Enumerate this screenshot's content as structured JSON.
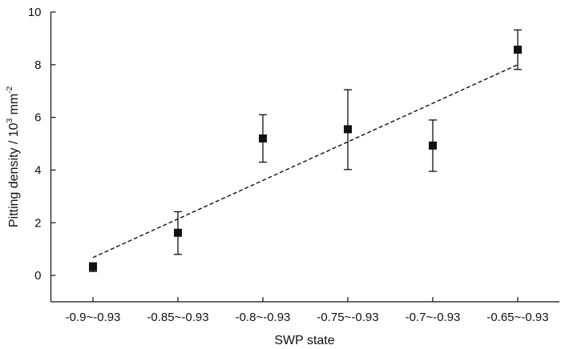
{
  "chart_data": {
    "type": "scatter",
    "xlabel": "SWP state",
    "ylabel": {
      "prefix": "Pitting density / 10",
      "exp1": "3",
      "middle": " mm",
      "exp2": "-2"
    },
    "categories": [
      "-0.9~-0.93",
      "-0.85~-0.93",
      "-0.8~-0.93",
      "-0.75~-0.93",
      "-0.7~-0.93",
      "-0.65~-0.93"
    ],
    "series": [
      {
        "values": [
          0.33,
          1.62,
          5.2,
          5.55,
          4.93,
          8.57
        ],
        "error_low": [
          0.15,
          0.8,
          4.3,
          4.02,
          3.95,
          7.82
        ],
        "error_high": [
          0.48,
          2.42,
          6.1,
          7.05,
          5.9,
          9.32
        ]
      }
    ],
    "fit_line": {
      "style": "dashed",
      "start": 0.68,
      "end": 8.0
    },
    "ylim": [
      -1,
      10
    ],
    "yticks": [
      "0",
      "2",
      "4",
      "6",
      "8",
      "10"
    ],
    "ytick_values": [
      0,
      2,
      4,
      6,
      8,
      10
    ],
    "grid": false,
    "legend": "none"
  }
}
